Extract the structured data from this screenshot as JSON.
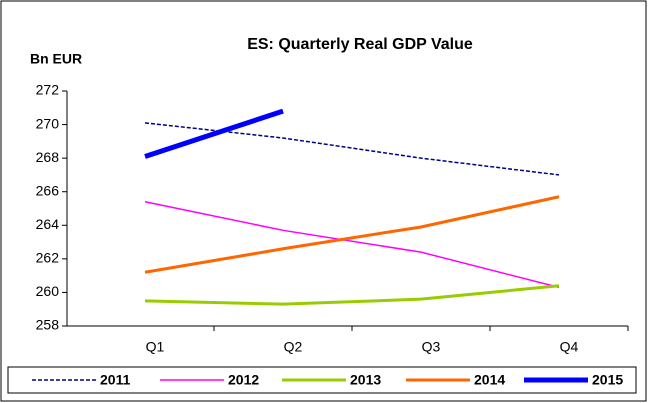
{
  "chart_data": {
    "type": "line",
    "title": "ES: Quarterly Real GDP Value",
    "y_label": "Bn EUR",
    "categories": [
      "Q1",
      "Q2",
      "Q3",
      "Q4"
    ],
    "series": [
      {
        "name": "2011",
        "color": "#000080",
        "dashed": true,
        "width": 1.5,
        "values": [
          270.1,
          269.2,
          268.0,
          267.0
        ]
      },
      {
        "name": "2012",
        "color": "#ff00ff",
        "width": 1.5,
        "values": [
          265.4,
          263.7,
          262.4,
          260.3
        ]
      },
      {
        "name": "2013",
        "color": "#99cc00",
        "width": 3,
        "values": [
          259.5,
          259.3,
          259.6,
          260.4
        ]
      },
      {
        "name": "2014",
        "color": "#ff6600",
        "width": 3,
        "values": [
          261.2,
          262.6,
          263.9,
          265.7
        ]
      },
      {
        "name": "2015",
        "color": "#0000ff",
        "width": 5,
        "values": [
          268.1,
          270.8,
          null,
          null
        ]
      }
    ],
    "ylim": [
      258,
      272
    ],
    "yticks": [
      258,
      260,
      262,
      264,
      266,
      268,
      270,
      272
    ],
    "grid": false,
    "legend": "bottom"
  }
}
